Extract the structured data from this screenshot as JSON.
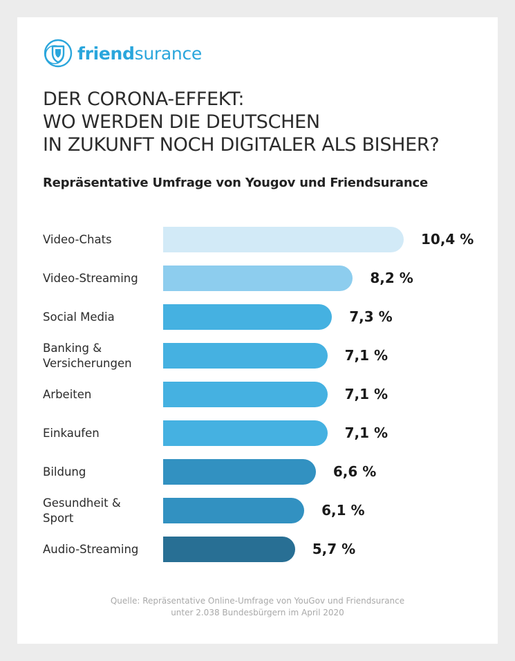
{
  "brand": {
    "name_bold": "friend",
    "name_regular": "surance",
    "color": "#2aa6dc"
  },
  "headline": {
    "line1": "DER CORONA-EFFEKT:",
    "line2": "WO WERDEN DIE DEUTSCHEN",
    "line3": "IN ZUKUNFT NOCH DIGITALER ALS BISHER?"
  },
  "subtitle": "Repräsentative Umfrage von Yougov und Friendsurance",
  "chart_data": {
    "type": "bar",
    "orientation": "horizontal",
    "title": "DER CORONA-EFFEKT: WO WERDEN DIE DEUTSCHEN IN ZUKUNFT NOCH DIGITALER ALS BISHER?",
    "subtitle": "Repräsentative Umfrage von Yougov und Friendsurance",
    "xlim": [
      0,
      10.4
    ],
    "grid": false,
    "legend": "none",
    "categories": [
      "Video-Chats",
      "Video-Streaming",
      "Social Media",
      "Banking & Versicherungen",
      "Arbeiten",
      "Einkaufen",
      "Bildung",
      "Gesundheit & Sport",
      "Audio-Streaming"
    ],
    "category_lines": [
      [
        "Video-Chats"
      ],
      [
        "Video-Streaming"
      ],
      [
        "Social Media"
      ],
      [
        "Banking &",
        "Versicherungen"
      ],
      [
        "Arbeiten"
      ],
      [
        "Einkaufen"
      ],
      [
        "Bildung"
      ],
      [
        "Gesundheit &",
        "Sport"
      ],
      [
        "Audio-Streaming"
      ]
    ],
    "values": [
      10.4,
      8.2,
      7.3,
      7.1,
      7.1,
      7.1,
      6.6,
      6.1,
      5.7
    ],
    "value_labels": [
      "10,4 %",
      "8,2 %",
      "7,3 %",
      "7,1 %",
      "7,1 %",
      "7,1 %",
      "6,6 %",
      "6,1 %",
      "5,7 %"
    ],
    "colors": [
      "#d2eaf7",
      "#8dcdee",
      "#45b1e1",
      "#45b1e1",
      "#45b1e1",
      "#45b1e1",
      "#3291c1",
      "#3291c1",
      "#286f94"
    ]
  },
  "source": {
    "line1": "Quelle: Repräsentative Online-Umfrage von YouGov und Friendsurance",
    "line2": "unter 2.038 Bundesbürgern im April 2020"
  }
}
